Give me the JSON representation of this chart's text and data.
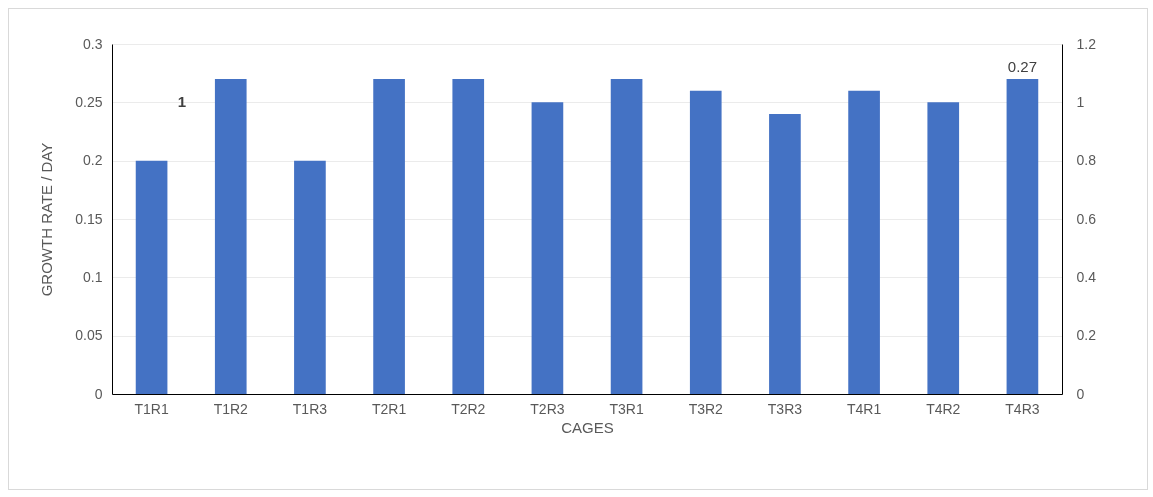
{
  "chart_data": {
    "type": "bar",
    "xlabel": "CAGES",
    "ylabel": "GROWTH RATE / DAY",
    "categories": [
      "T1R1",
      "T1R2",
      "T1R3",
      "T2R1",
      "T2R2",
      "T2R3",
      "T3R1",
      "T3R2",
      "T3R3",
      "T4R1",
      "T4R2",
      "T4R3"
    ],
    "values": [
      0.2,
      0.27,
      0.2,
      0.27,
      0.27,
      0.25,
      0.27,
      0.26,
      0.24,
      0.26,
      0.25,
      0.27
    ],
    "value_labels": [
      null,
      null,
      null,
      null,
      null,
      null,
      null,
      null,
      null,
      null,
      null,
      "0.27"
    ],
    "color": "#4472c4",
    "ylim": [
      0,
      0.3
    ],
    "yticks": [
      0,
      0.05,
      0.1,
      0.15,
      0.2,
      0.25,
      0.3
    ],
    "y2lim": [
      0,
      1.2
    ],
    "y2ticks": [
      0,
      0.2,
      0.4,
      0.6,
      0.8,
      1,
      1.2
    ],
    "annotations": [
      "1"
    ],
    "grid": "y"
  }
}
